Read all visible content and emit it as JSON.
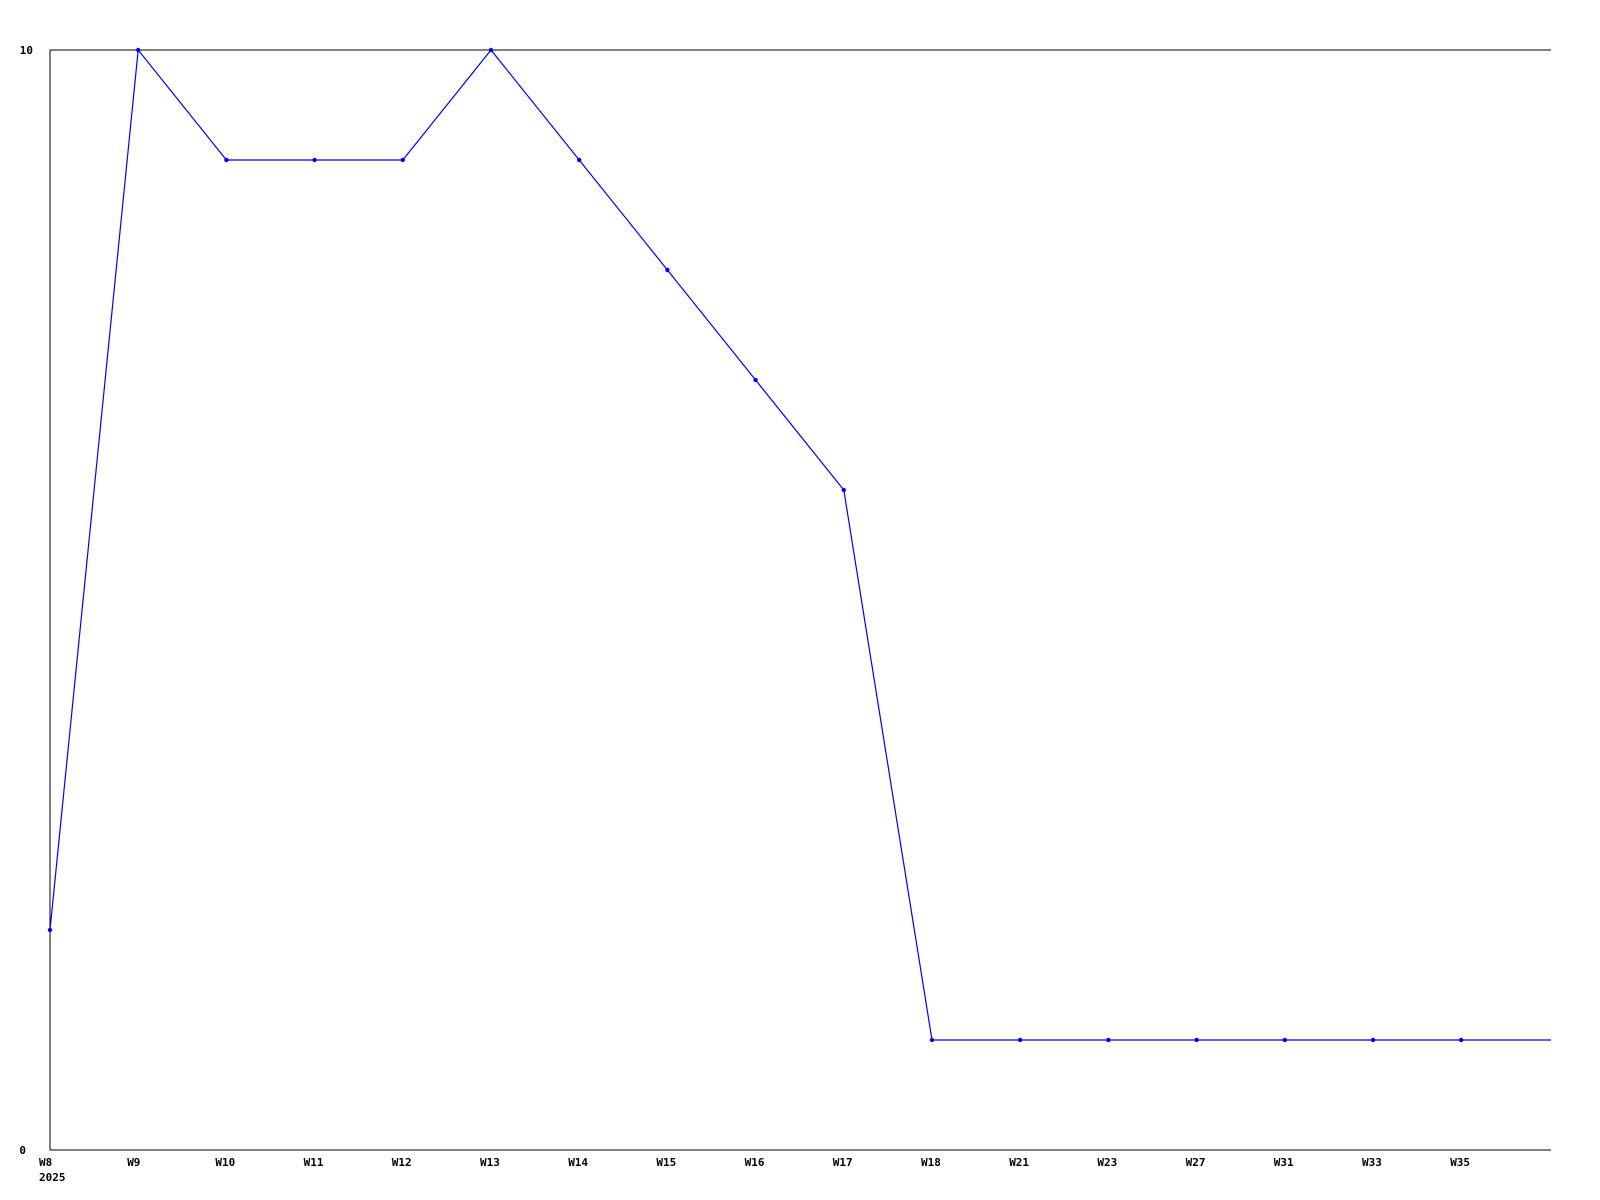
{
  "chart_data": {
    "type": "line",
    "title": "",
    "xlabel": "",
    "ylabel": "",
    "categories": [
      "W8",
      "W9",
      "W10",
      "W11",
      "W12",
      "W13",
      "W14",
      "W15",
      "W16",
      "W17",
      "W18",
      "W21",
      "W23",
      "W27",
      "W31",
      "W33",
      "W35"
    ],
    "x_sublabel": "2025",
    "ylim": [
      0,
      10
    ],
    "yticks": [
      "0",
      "10"
    ],
    "grid": false,
    "series": [
      {
        "values": [
          2,
          10,
          9,
          9,
          9,
          10,
          9,
          8,
          7,
          6,
          1,
          1,
          1,
          1,
          1,
          1,
          1
        ],
        "color": "#0000ff",
        "continues_right_at": 1
      }
    ]
  }
}
